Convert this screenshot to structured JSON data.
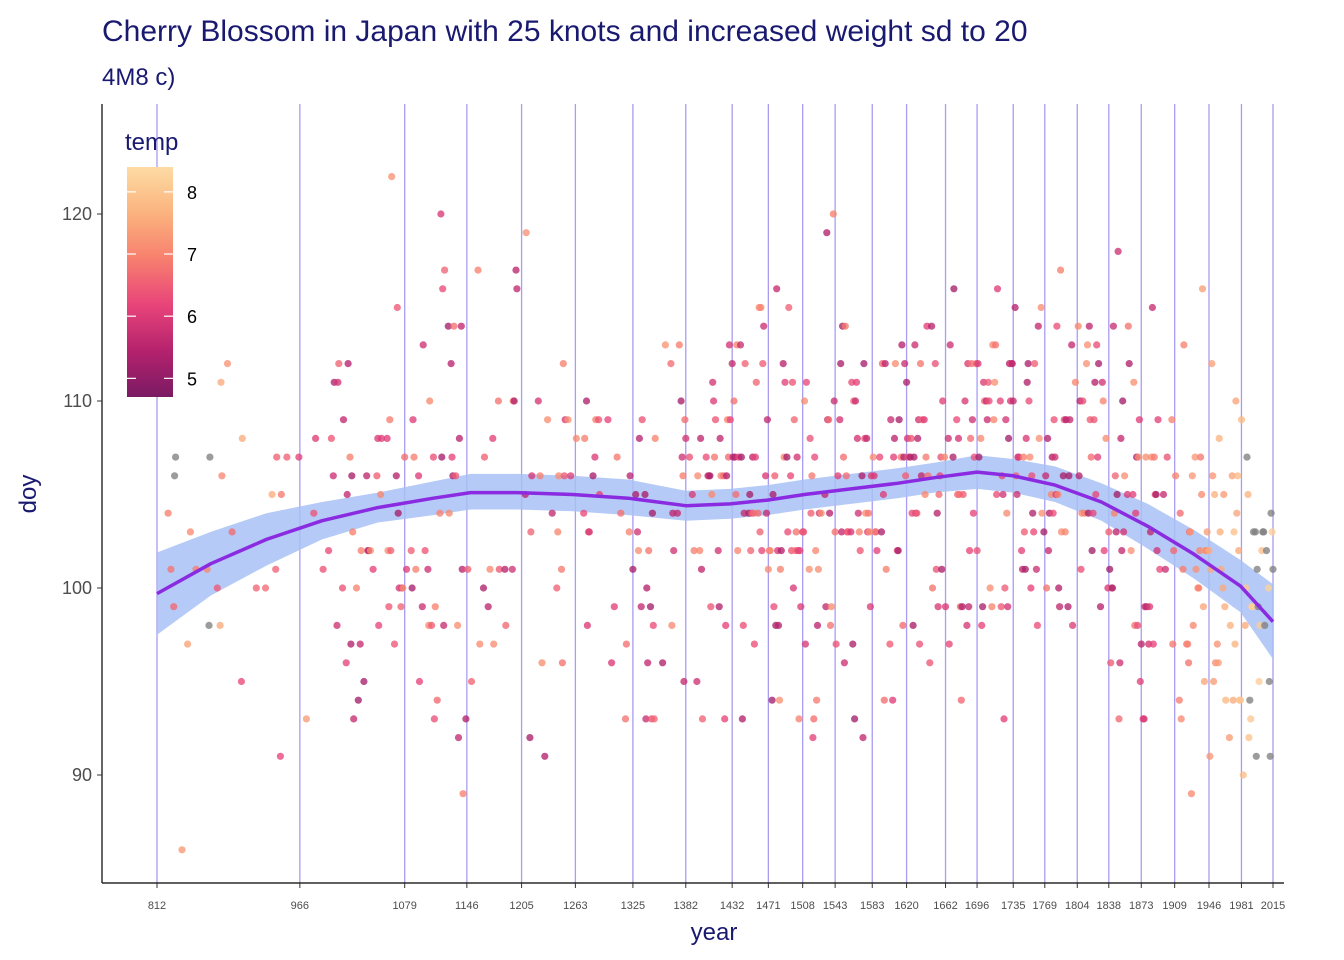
{
  "chart_data": {
    "type": "scatter",
    "title": "Cherry Blossom in Japan with 25 knots and increased weight sd to 20",
    "subtitle": "4M8 c)",
    "xlabel": "year",
    "ylabel": "doy",
    "xlim": [
      812,
      2015
    ],
    "ylim": [
      84.5,
      126
    ],
    "y_ticks": [
      90,
      100,
      110,
      120
    ],
    "knots": [
      812,
      966,
      1079,
      1146,
      1205,
      1263,
      1325,
      1382,
      1432,
      1471,
      1508,
      1543,
      1583,
      1620,
      1662,
      1696,
      1735,
      1769,
      1804,
      1838,
      1873,
      1909,
      1946,
      1981,
      2015
    ],
    "legend": {
      "title": "temp",
      "position": "top-left",
      "ticks": [
        5,
        6,
        7,
        8
      ],
      "range": [
        4.7,
        8.4
      ],
      "colors": [
        "#7a1a63",
        "#b5226d",
        "#e8447a",
        "#f77f6e",
        "#fbb37e",
        "#fddba4"
      ]
    },
    "colors": {
      "knot_line": "#a99cf2",
      "fit_line": "#8a2be2",
      "ribbon": "#a8c1f4",
      "missing_temp": "#808080"
    },
    "fit": {
      "x": [
        812,
        870,
        930,
        990,
        1050,
        1110,
        1150,
        1200,
        1260,
        1320,
        1382,
        1430,
        1470,
        1510,
        1560,
        1610,
        1650,
        1696,
        1735,
        1780,
        1830,
        1880,
        1930,
        1980,
        2015
      ],
      "y": [
        99.7,
        101.3,
        102.6,
        103.6,
        104.3,
        104.8,
        105.1,
        105.1,
        105.0,
        104.8,
        104.4,
        104.5,
        104.7,
        105.0,
        105.3,
        105.6,
        105.9,
        106.2,
        106.0,
        105.5,
        104.6,
        103.3,
        101.8,
        100.1,
        98.2
      ],
      "lower": [
        97.5,
        99.6,
        101.2,
        102.6,
        103.5,
        103.9,
        104.2,
        104.2,
        104.1,
        103.9,
        103.6,
        103.7,
        103.9,
        104.2,
        104.5,
        104.8,
        105.1,
        105.3,
        105.1,
        104.6,
        103.6,
        102.1,
        100.5,
        98.7,
        96.2
      ],
      "upper": [
        101.9,
        103.0,
        104.0,
        104.6,
        105.1,
        105.7,
        106.1,
        106.1,
        106.0,
        105.8,
        105.2,
        105.3,
        105.5,
        105.8,
        106.1,
        106.4,
        106.7,
        107.1,
        106.9,
        106.5,
        105.6,
        104.5,
        103.1,
        101.5,
        100.2
      ]
    }
  }
}
